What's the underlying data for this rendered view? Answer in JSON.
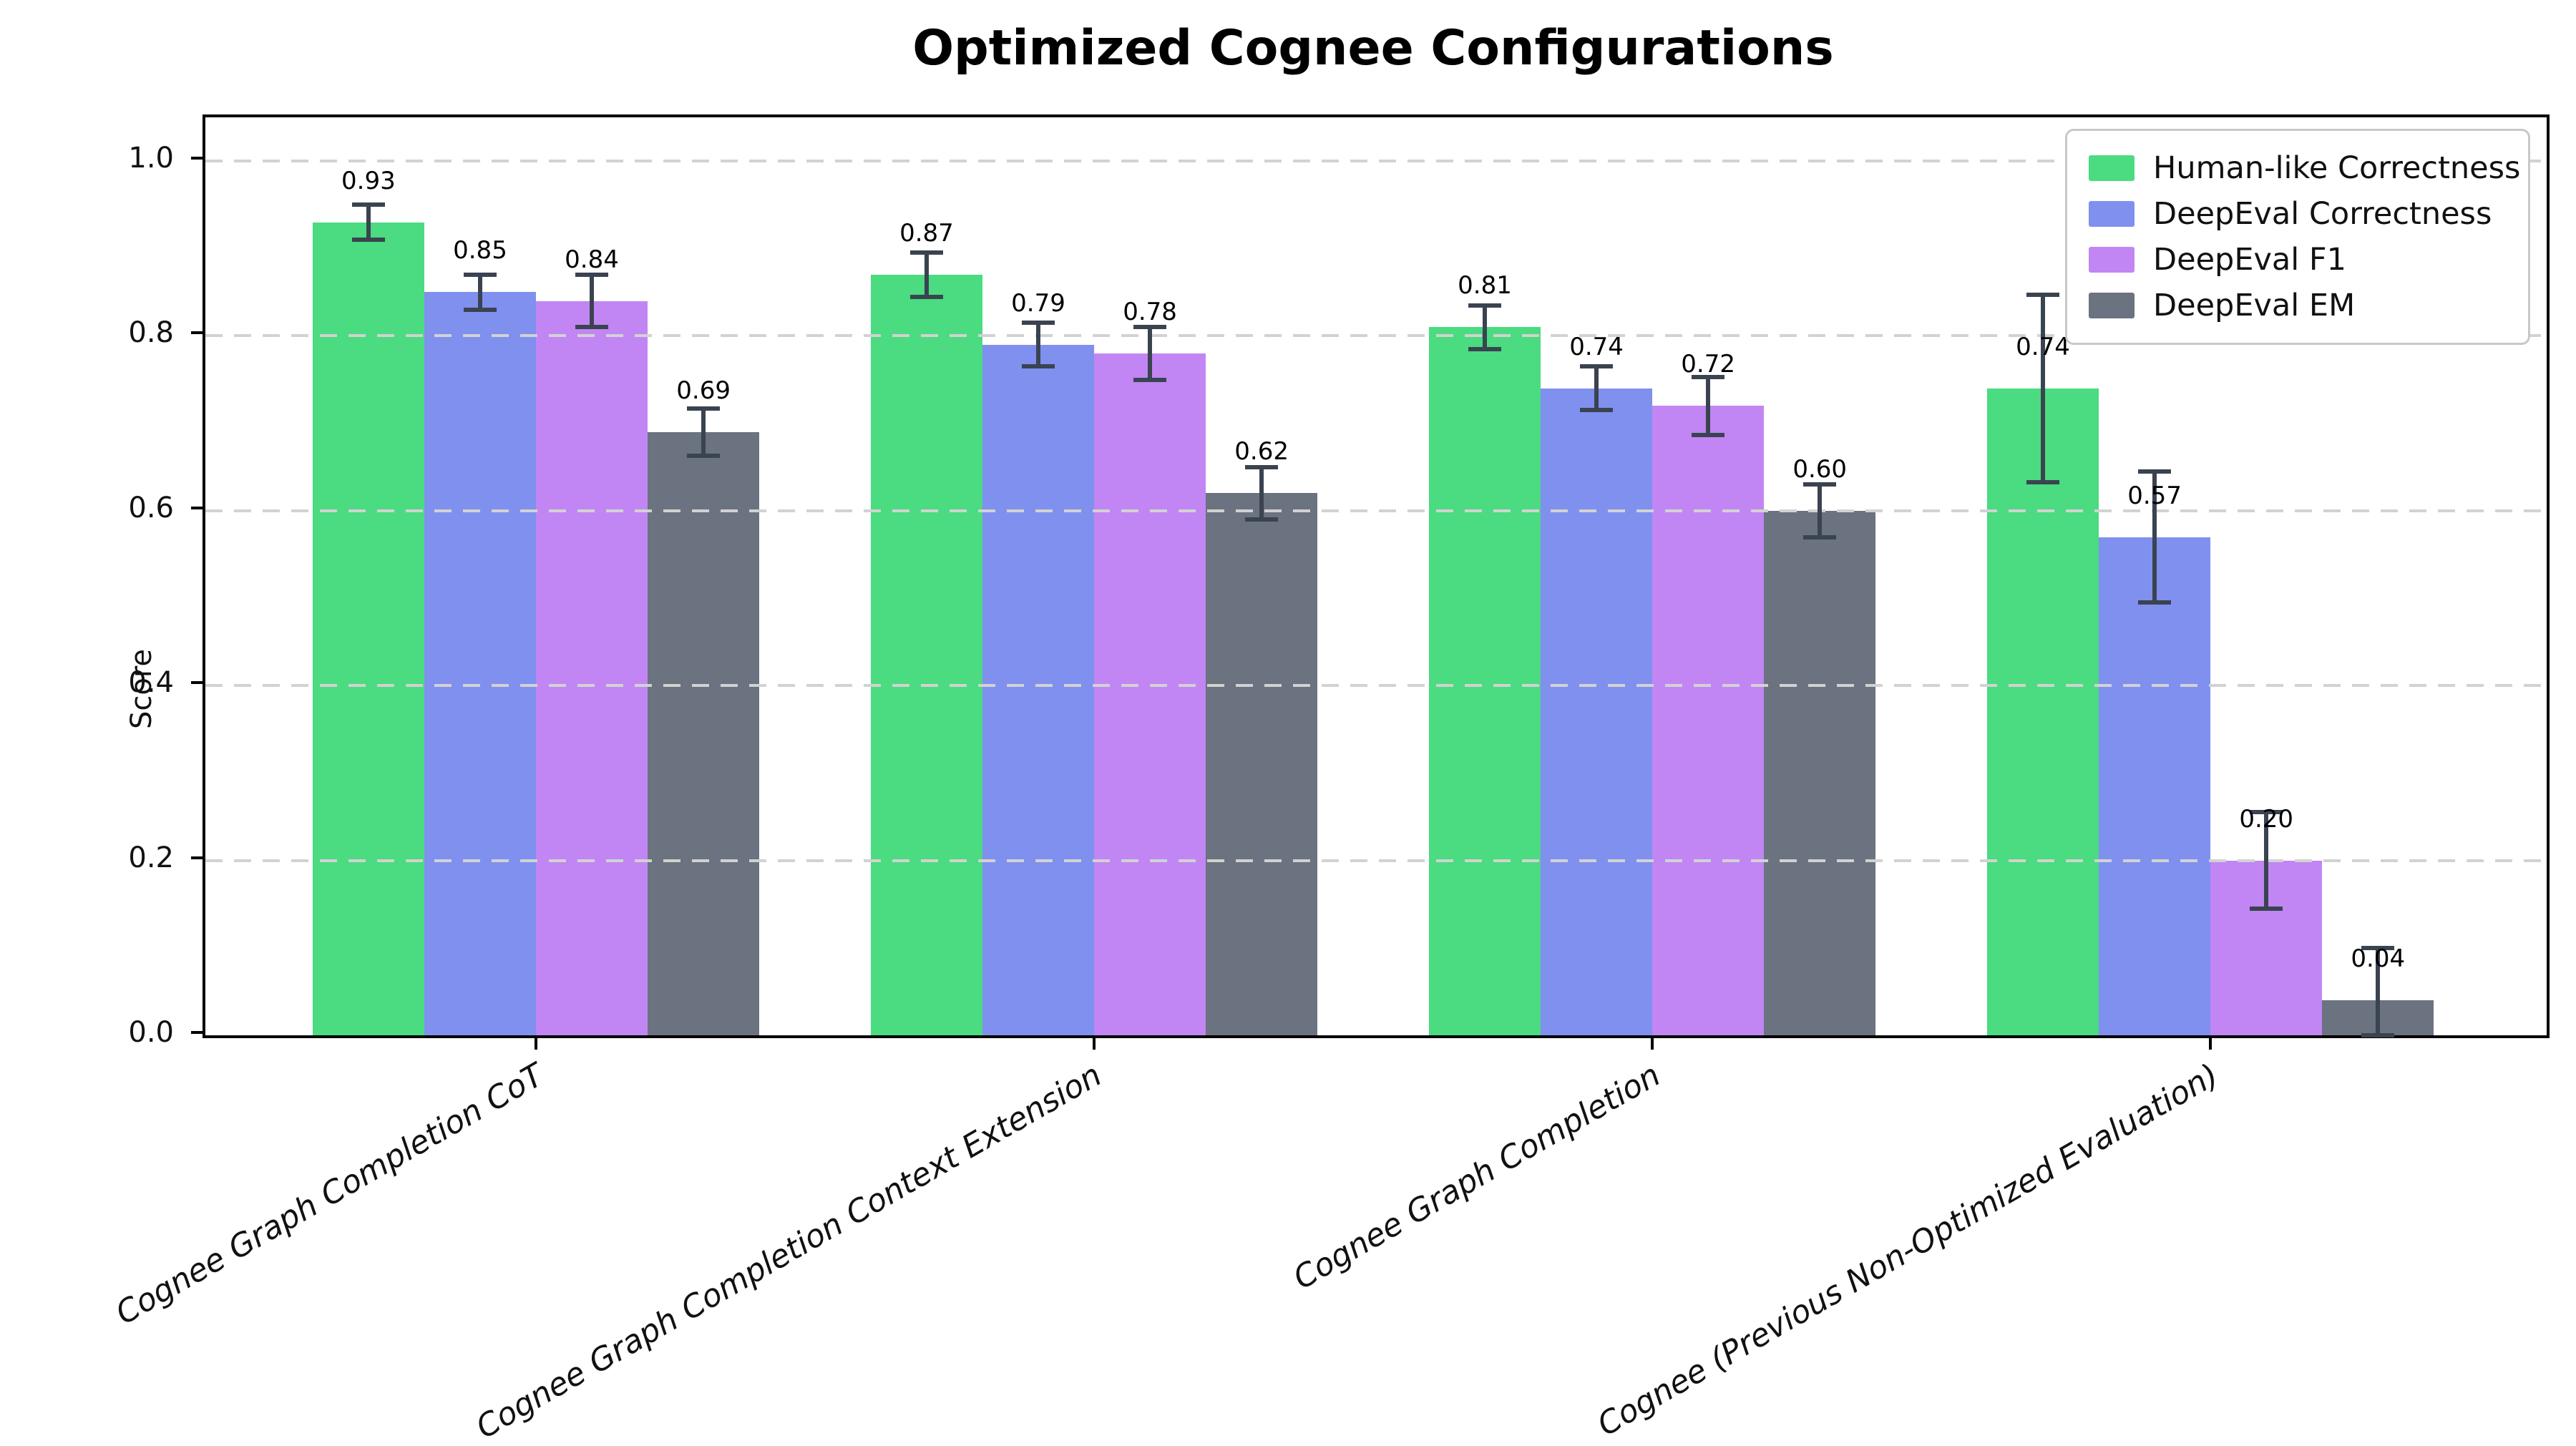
{
  "chart_data": {
    "type": "bar",
    "title": "Optimized Cognee Configurations",
    "xlabel": "",
    "ylabel": "Score",
    "ylim": [
      0,
      1.05
    ],
    "yticks": [
      0.0,
      0.2,
      0.4,
      0.6,
      0.8,
      1.0
    ],
    "ytick_labels": [
      "0.0",
      "0.2",
      "0.4",
      "0.6",
      "0.8",
      "1.0"
    ],
    "grid": "horizontal dashed gridlines at y ticks, drawn over bars",
    "legend_position": "upper right",
    "background_color": "#ffffff",
    "grid_color": "#d2d2d2",
    "error_bar_color": "#3a4350",
    "categories": [
      "Cognee Graph Completion CoT",
      "Cognee Graph Completion Context Extension",
      "Cognee Graph Completion",
      "Cognee (Previous Non-Optimized Evaluation)"
    ],
    "series": [
      {
        "name": "Human-like Correctness",
        "color": "#4bdb80",
        "values": [
          0.93,
          0.87,
          0.81,
          0.74
        ],
        "errors": [
          0.02,
          0.025,
          0.025,
          0.107
        ],
        "value_labels": [
          "0.93",
          "0.87",
          "0.81",
          "0.74"
        ]
      },
      {
        "name": "DeepEval Correctness",
        "color": "#8090ef",
        "values": [
          0.85,
          0.79,
          0.74,
          0.57
        ],
        "errors": [
          0.02,
          0.025,
          0.025,
          0.075
        ],
        "value_labels": [
          "0.85",
          "0.79",
          "0.74",
          "0.57"
        ]
      },
      {
        "name": "DeepEval F1",
        "color": "#c186f3",
        "values": [
          0.84,
          0.78,
          0.72,
          0.2
        ],
        "errors": [
          0.03,
          0.03,
          0.033,
          0.055
        ],
        "value_labels": [
          "0.84",
          "0.78",
          "0.72",
          "0.20"
        ]
      },
      {
        "name": "DeepEval EM",
        "color": "#6b7280",
        "values": [
          0.69,
          0.62,
          0.6,
          0.04
        ],
        "errors": [
          0.027,
          0.03,
          0.03,
          0.06
        ],
        "value_labels": [
          "0.69",
          "0.62",
          "0.60",
          "0.04"
        ]
      }
    ]
  }
}
